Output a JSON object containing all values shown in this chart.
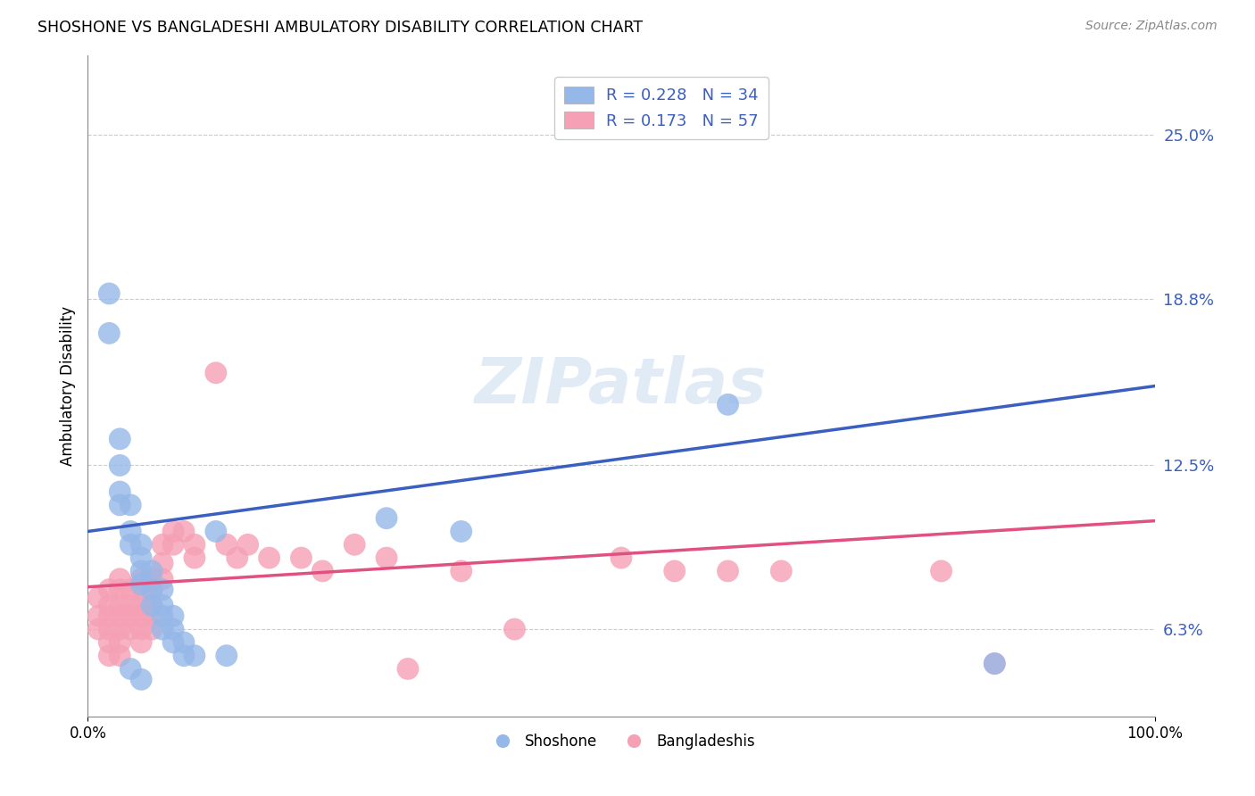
{
  "title": "SHOSHONE VS BANGLADESHI AMBULATORY DISABILITY CORRELATION CHART",
  "source": "Source: ZipAtlas.com",
  "ylabel": "Ambulatory Disability",
  "yticks": [
    0.063,
    0.125,
    0.188,
    0.25
  ],
  "ytick_labels": [
    "6.3%",
    "12.5%",
    "18.8%",
    "25.0%"
  ],
  "xlim": [
    0.0,
    1.0
  ],
  "ylim": [
    0.03,
    0.28
  ],
  "shoshone_color": "#95B8E8",
  "bangladeshi_color": "#F5A0B5",
  "blue_line_color": "#3B5FC0",
  "pink_line_color": "#E05080",
  "legend_R1": "R = 0.228",
  "legend_N1": "N = 34",
  "legend_R2": "R = 0.173",
  "legend_N2": "N = 57",
  "legend_label1": "Shoshone",
  "legend_label2": "Bangladeshis",
  "watermark": "ZIPatlas",
  "blue_line_x0": 0.0,
  "blue_line_y0": 0.1,
  "blue_line_x1": 1.0,
  "blue_line_y1": 0.155,
  "pink_line_x0": 0.0,
  "pink_line_y0": 0.079,
  "pink_line_x1": 1.0,
  "pink_line_y1": 0.104,
  "shoshone_x": [
    0.02,
    0.02,
    0.03,
    0.03,
    0.03,
    0.03,
    0.04,
    0.04,
    0.04,
    0.05,
    0.05,
    0.05,
    0.05,
    0.06,
    0.06,
    0.06,
    0.07,
    0.07,
    0.07,
    0.07,
    0.08,
    0.08,
    0.08,
    0.09,
    0.09,
    0.1,
    0.12,
    0.13,
    0.28,
    0.35,
    0.6,
    0.85,
    0.04,
    0.05
  ],
  "shoshone_y": [
    0.19,
    0.175,
    0.135,
    0.125,
    0.115,
    0.11,
    0.11,
    0.1,
    0.095,
    0.095,
    0.09,
    0.085,
    0.08,
    0.085,
    0.078,
    0.072,
    0.078,
    0.072,
    0.068,
    0.063,
    0.068,
    0.063,
    0.058,
    0.058,
    0.053,
    0.053,
    0.1,
    0.053,
    0.105,
    0.1,
    0.148,
    0.05,
    0.048,
    0.044
  ],
  "bangladeshi_x": [
    0.01,
    0.01,
    0.01,
    0.02,
    0.02,
    0.02,
    0.02,
    0.02,
    0.02,
    0.03,
    0.03,
    0.03,
    0.03,
    0.03,
    0.03,
    0.03,
    0.04,
    0.04,
    0.04,
    0.04,
    0.05,
    0.05,
    0.05,
    0.05,
    0.05,
    0.05,
    0.06,
    0.06,
    0.06,
    0.06,
    0.06,
    0.07,
    0.07,
    0.07,
    0.08,
    0.08,
    0.09,
    0.1,
    0.1,
    0.12,
    0.13,
    0.14,
    0.15,
    0.17,
    0.2,
    0.22,
    0.25,
    0.28,
    0.3,
    0.35,
    0.4,
    0.5,
    0.55,
    0.6,
    0.65,
    0.8,
    0.85
  ],
  "bangladeshi_y": [
    0.075,
    0.068,
    0.063,
    0.078,
    0.072,
    0.068,
    0.063,
    0.058,
    0.053,
    0.082,
    0.078,
    0.072,
    0.068,
    0.063,
    0.058,
    0.053,
    0.078,
    0.072,
    0.068,
    0.063,
    0.082,
    0.078,
    0.072,
    0.068,
    0.063,
    0.058,
    0.082,
    0.078,
    0.072,
    0.068,
    0.063,
    0.095,
    0.088,
    0.082,
    0.1,
    0.095,
    0.1,
    0.095,
    0.09,
    0.16,
    0.095,
    0.09,
    0.095,
    0.09,
    0.09,
    0.085,
    0.095,
    0.09,
    0.048,
    0.085,
    0.063,
    0.09,
    0.085,
    0.085,
    0.085,
    0.085,
    0.05
  ]
}
